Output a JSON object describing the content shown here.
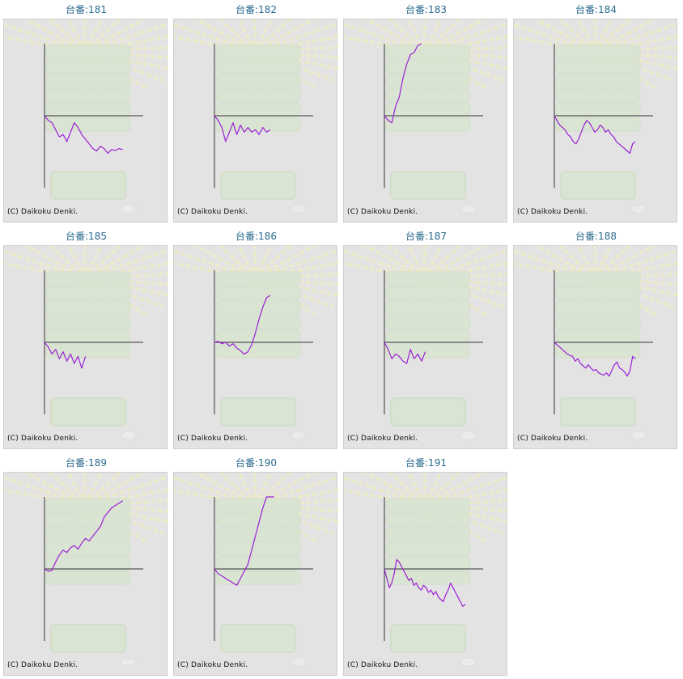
{
  "page": {
    "machine_prefix": "台番:",
    "copyright": "(C) Daikoku Denki."
  },
  "colors": {
    "line": "#9a1fd6",
    "axis": "#333333",
    "title": "#2b6a8d",
    "panel_bg": "#e3e3e3"
  },
  "chart_data": [
    {
      "type": "line",
      "title": "台番:181",
      "values": [
        0,
        -10,
        -15,
        -30,
        -45,
        -40,
        -55,
        -35,
        -15,
        -25,
        -40,
        -50,
        -60,
        -70,
        -75,
        -65,
        -70,
        -80,
        -72,
        -74,
        -70,
        -72
      ]
    },
    {
      "type": "line",
      "title": "台番:182",
      "values": [
        0,
        -10,
        -25,
        -55,
        -35,
        -15,
        -40,
        -20,
        -35,
        -25,
        -35,
        -30,
        -40,
        -25,
        -35,
        -30
      ]
    },
    {
      "type": "line",
      "title": "台番:183",
      "values": [
        0,
        -10,
        -15,
        20,
        40,
        80,
        110,
        130,
        135,
        150,
        155
      ]
    },
    {
      "type": "line",
      "title": "台番:184",
      "values": [
        0,
        -10,
        -20,
        -25,
        -30,
        -40,
        -45,
        -55,
        -60,
        -50,
        -35,
        -20,
        -10,
        -15,
        -25,
        -35,
        -30,
        -20,
        -25,
        -35,
        -30,
        -40,
        -45,
        -55,
        -60,
        -65,
        -70,
        -75,
        -80,
        -60,
        -55
      ]
    },
    {
      "type": "line",
      "title": "台番:185",
      "values": [
        0,
        -10,
        -25,
        -15,
        -35,
        -20,
        -40,
        -25,
        -45,
        -30,
        -55,
        -30
      ]
    },
    {
      "type": "line",
      "title": "台番:186",
      "values": [
        0,
        2,
        -3,
        0,
        -8,
        -3,
        -12,
        -18,
        -25,
        -20,
        -5,
        20,
        50,
        75,
        95,
        100
      ]
    },
    {
      "type": "line",
      "title": "台番:187",
      "values": [
        0,
        -15,
        -35,
        -25,
        -30,
        -40,
        -45,
        -15,
        -35,
        -25,
        -40,
        -20
      ]
    },
    {
      "type": "line",
      "title": "台番:188",
      "values": [
        0,
        -5,
        -10,
        -15,
        -20,
        -25,
        -28,
        -30,
        -40,
        -35,
        -45,
        -50,
        -55,
        -48,
        -55,
        -60,
        -58,
        -65,
        -68,
        -70,
        -65,
        -72,
        -60,
        -48,
        -42,
        -55,
        -58,
        -64,
        -72,
        -60,
        -30,
        -35
      ]
    },
    {
      "type": "line",
      "title": "台番:189",
      "values": [
        0,
        -5,
        -3,
        15,
        30,
        40,
        35,
        45,
        50,
        42,
        55,
        65,
        60,
        70,
        80,
        90,
        110,
        120,
        130,
        135,
        140,
        145
      ]
    },
    {
      "type": "line",
      "title": "台番:190",
      "values": [
        0,
        -10,
        -15,
        -20,
        -25,
        -30,
        -35,
        -20,
        -5,
        10,
        40,
        70,
        100,
        130,
        155,
        160,
        170
      ]
    },
    {
      "type": "line",
      "title": "台番:191",
      "values": [
        0,
        -20,
        -40,
        -30,
        -10,
        20,
        15,
        5,
        -5,
        -15,
        -25,
        -20,
        -35,
        -30,
        -40,
        -45,
        -35,
        -40,
        -50,
        -45,
        -55,
        -48,
        -60,
        -65,
        -70,
        -55,
        -45,
        -30,
        -40,
        -50,
        -60,
        -70,
        -80,
        -75
      ]
    }
  ]
}
